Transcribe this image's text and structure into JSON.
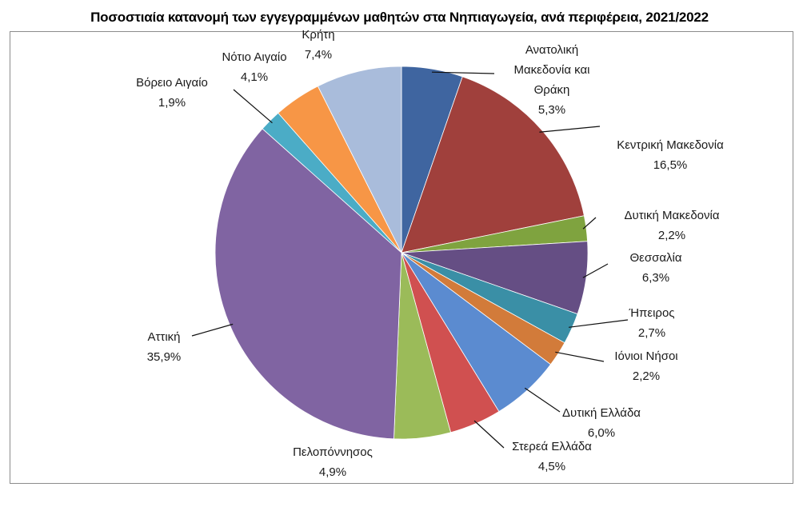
{
  "chart_data": {
    "type": "pie",
    "title": "Ποσοστιαία κατανομή των εγγεγραμμένων μαθητών στα Νηπιαγωγεία, ανά περιφέρεια, 2021/2022",
    "start_angle": "top, clockwise",
    "slices": [
      {
        "label": [
          "Ανατολική",
          "Μακεδονία και",
          "Θράκη"
        ],
        "value": 5.3,
        "value_label": "5,3%",
        "color": "#3F65A0"
      },
      {
        "label": [
          "Κεντρική Μακεδονία"
        ],
        "value": 16.5,
        "value_label": "16,5%",
        "color": "#A0403C"
      },
      {
        "label": [
          "Δυτική Μακεδονία"
        ],
        "value": 2.2,
        "value_label": "2,2%",
        "color": "#7FA33F"
      },
      {
        "label": [
          "Θεσσαλία"
        ],
        "value": 6.3,
        "value_label": "6,3%",
        "color": "#654E84"
      },
      {
        "label": [
          "Ήπειρος"
        ],
        "value": 2.7,
        "value_label": "2,7%",
        "color": "#3A8FA6"
      },
      {
        "label": [
          "Ιόνιοι Νήσοι"
        ],
        "value": 2.2,
        "value_label": "2,2%",
        "color": "#D27B3A"
      },
      {
        "label": [
          "Δυτική Ελλάδα"
        ],
        "value": 6.0,
        "value_label": "6,0%",
        "color": "#5B8BD0"
      },
      {
        "label": [
          "Στερεά Ελλάδα"
        ],
        "value": 4.5,
        "value_label": "4,5%",
        "color": "#D05050"
      },
      {
        "label": [
          "Πελοπόννησος"
        ],
        "value": 4.9,
        "value_label": "4,9%",
        "color": "#9BBB59"
      },
      {
        "label": [
          "Αττική"
        ],
        "value": 35.9,
        "value_label": "35,9%",
        "color": "#8064A2"
      },
      {
        "label": [
          "Βόρειο Αιγαίο"
        ],
        "value": 1.9,
        "value_label": "1,9%",
        "color": "#4BACC6"
      },
      {
        "label": [
          "Νότιο Αιγαίο"
        ],
        "value": 4.1,
        "value_label": "4,1%",
        "color": "#F79646"
      },
      {
        "label": [
          "Κρήτη"
        ],
        "value": 7.4,
        "value_label": "7,4%",
        "color": "#A9BCDB"
      }
    ]
  }
}
